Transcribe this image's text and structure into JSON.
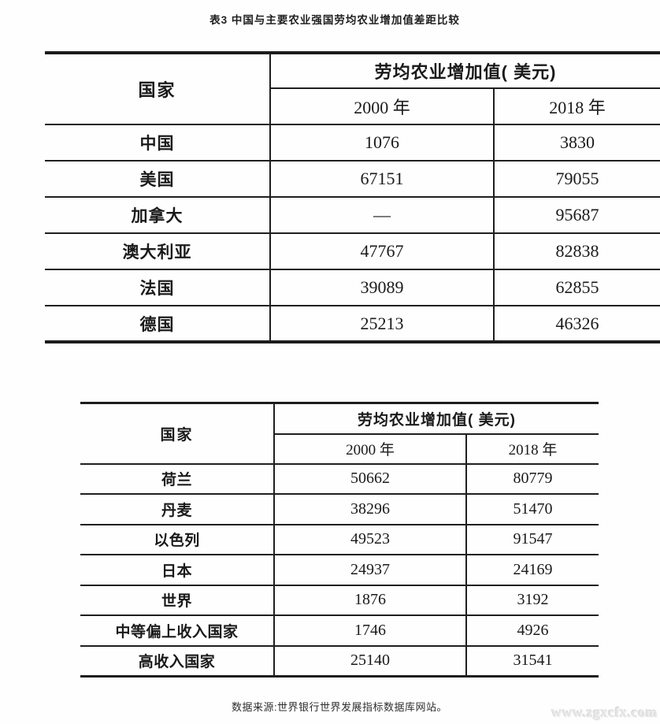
{
  "page": {
    "title": "表3  中国与主要农业强国劳均农业增加值差距比较",
    "source_note": "数据来源:世界银行世界发展指标数据库网站。",
    "watermark": "www.zgxcfx.com"
  },
  "table1": {
    "country_header": "国家",
    "group_header": "劳均农业增加值( 美元)",
    "col_2000": "2000 年",
    "col_2018": "2018 年",
    "rows": [
      {
        "country": "中国",
        "y2000": "1076",
        "y2018": "3830"
      },
      {
        "country": "美国",
        "y2000": "67151",
        "y2018": "79055"
      },
      {
        "country": "加拿大",
        "y2000": "—",
        "y2018": "95687"
      },
      {
        "country": "澳大利亚",
        "y2000": "47767",
        "y2018": "82838"
      },
      {
        "country": "法国",
        "y2000": "39089",
        "y2018": "62855"
      },
      {
        "country": "德国",
        "y2000": "25213",
        "y2018": "46326"
      }
    ]
  },
  "table2": {
    "country_header": "国家",
    "group_header": "劳均农业增加值( 美元)",
    "col_2000": "2000 年",
    "col_2018": "2018 年",
    "rows": [
      {
        "country": "荷兰",
        "y2000": "50662",
        "y2018": "80779"
      },
      {
        "country": "丹麦",
        "y2000": "38296",
        "y2018": "51470"
      },
      {
        "country": "以色列",
        "y2000": "49523",
        "y2018": "91547"
      },
      {
        "country": "日本",
        "y2000": "24937",
        "y2018": "24169"
      },
      {
        "country": "世界",
        "y2000": "1876",
        "y2018": "3192"
      },
      {
        "country": "中等偏上收入国家",
        "y2000": "1746",
        "y2018": "4926"
      },
      {
        "country": "高收入国家",
        "y2000": "25140",
        "y2018": "31541"
      }
    ]
  }
}
